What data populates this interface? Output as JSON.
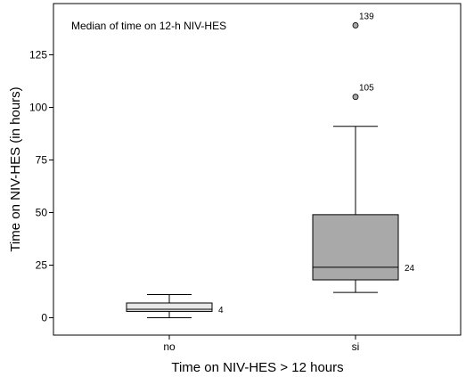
{
  "chart_data": {
    "type": "box",
    "title": "Median of time on 12-h NIV-HES",
    "xlabel": "Time on NIV-HES > 12 hours",
    "ylabel": "Time on NIV-HES (in hours)",
    "categories": [
      "no",
      "si"
    ],
    "ylim": [
      -4.5,
      145
    ],
    "yticks": [
      0,
      25,
      50,
      75,
      100,
      125
    ],
    "grid": false,
    "boxes": [
      {
        "category": "no",
        "whisker_low": 0,
        "q1": 3,
        "median": 4,
        "q3": 7,
        "whisker_high": 11,
        "median_label": "4",
        "outliers": [],
        "fill": "#e8e8e8"
      },
      {
        "category": "si",
        "whisker_low": 12,
        "q1": 18,
        "median": 24,
        "q3": 49,
        "whisker_high": 91,
        "median_label": "24",
        "outliers": [
          {
            "value": 105,
            "label": "105"
          },
          {
            "value": 139,
            "label": "139"
          }
        ],
        "fill": "#a9a9a9"
      }
    ]
  }
}
